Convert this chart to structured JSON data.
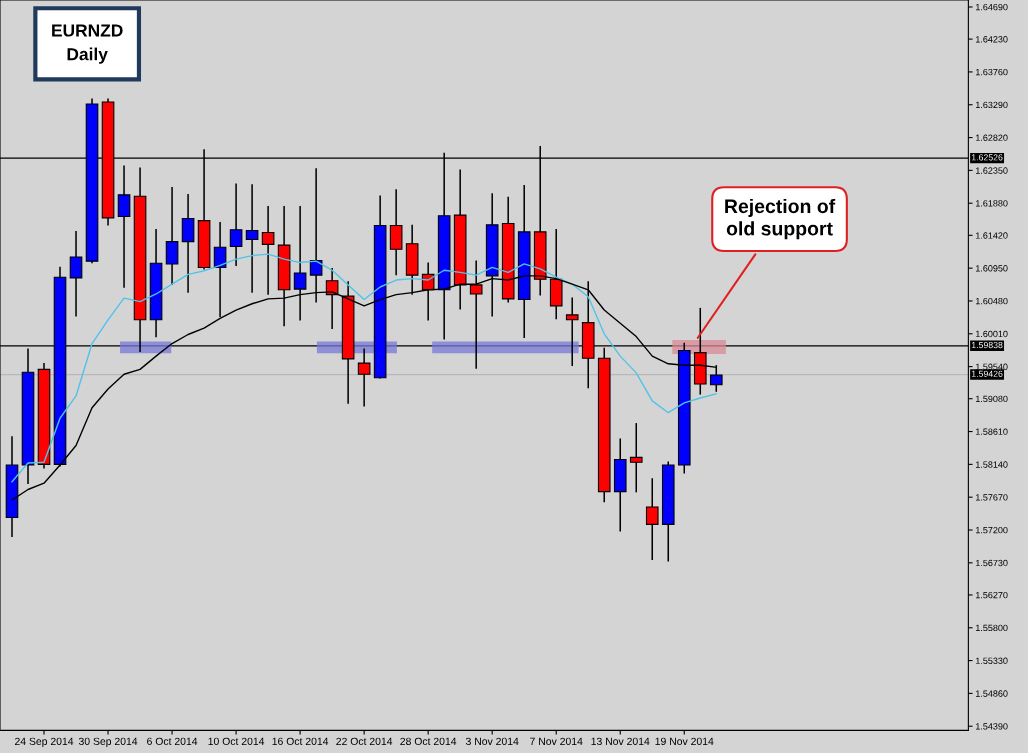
{
  "chart_data": {
    "type": "candlestick",
    "title": "EURNZD\nDaily",
    "categories": [
      null,
      null,
      "24 Sep 2014",
      null,
      null,
      null,
      "30 Sep 2014",
      null,
      null,
      null,
      "6 Oct 2014",
      null,
      null,
      null,
      "10 Oct 2014",
      null,
      null,
      null,
      "16 Oct 2014",
      null,
      null,
      null,
      "22 Oct 2014",
      null,
      null,
      null,
      "28 Oct 2014",
      null,
      null,
      null,
      "3 Nov 2014",
      null,
      null,
      null,
      "7 Nov 2014",
      null,
      null,
      null,
      "13 Nov 2014",
      null,
      null,
      null,
      "19 Nov 2014",
      null,
      null
    ],
    "ohlc": [
      [
        1.5738,
        1.5853,
        1.5711,
        1.5813
      ],
      [
        1.5813,
        1.5979,
        1.5787,
        1.5946
      ],
      [
        1.595,
        1.5958,
        1.5809,
        1.5814
      ],
      [
        1.5814,
        1.6096,
        1.5812,
        1.6082
      ],
      [
        1.6081,
        1.6147,
        1.6027,
        1.6111
      ],
      [
        1.6105,
        1.6337,
        1.6103,
        1.633
      ],
      [
        1.6333,
        1.6337,
        1.6157,
        1.6167
      ],
      [
        1.6169,
        1.6241,
        1.6068,
        1.62
      ],
      [
        1.6198,
        1.6238,
        1.5976,
        1.6021
      ],
      [
        1.6021,
        1.615,
        1.5997,
        1.6102
      ],
      [
        1.6101,
        1.621,
        1.6072,
        1.6133
      ],
      [
        1.6133,
        1.62,
        1.6061,
        1.6166
      ],
      [
        1.6163,
        1.6264,
        1.6094,
        1.6096
      ],
      [
        1.6096,
        1.616,
        1.6026,
        1.6125
      ],
      [
        1.6126,
        1.6215,
        1.6099,
        1.615
      ],
      [
        1.6136,
        1.6214,
        1.6061,
        1.6149
      ],
      [
        1.6146,
        1.6183,
        1.6058,
        1.6129
      ],
      [
        1.6128,
        1.6183,
        1.6013,
        1.6064
      ],
      [
        1.6065,
        1.6183,
        1.6021,
        1.6088
      ],
      [
        1.6085,
        1.6237,
        1.6047,
        1.6106
      ],
      [
        1.6077,
        1.6094,
        1.6009,
        1.6057
      ],
      [
        1.6055,
        1.6075,
        1.5902,
        1.5965
      ],
      [
        1.5959,
        1.5979,
        1.5898,
        1.5943
      ],
      [
        1.5938,
        1.6198,
        1.5938,
        1.6156
      ],
      [
        1.6156,
        1.6207,
        1.6086,
        1.6122
      ],
      [
        1.613,
        1.6156,
        1.6058,
        1.6085
      ],
      [
        1.6086,
        1.6102,
        1.6021,
        1.6064
      ],
      [
        1.6064,
        1.6259,
        1.5994,
        1.617
      ],
      [
        1.6171,
        1.6235,
        1.6037,
        1.6071
      ],
      [
        1.6071,
        1.6105,
        1.5952,
        1.6058
      ],
      [
        1.6084,
        1.6201,
        1.6027,
        1.6157
      ],
      [
        1.6159,
        1.6196,
        1.6047,
        1.6051
      ],
      [
        1.605,
        1.6213,
        1.5996,
        1.6147
      ],
      [
        1.6147,
        1.6269,
        1.6057,
        1.6079
      ],
      [
        1.6079,
        1.615,
        1.6023,
        1.6041
      ],
      [
        1.6028,
        1.6052,
        1.5956,
        1.6021
      ],
      [
        1.6017,
        1.6075,
        1.5924,
        1.5966
      ],
      [
        1.5966,
        1.598,
        1.5761,
        1.5775
      ],
      [
        1.5775,
        1.585,
        1.5719,
        1.5821
      ],
      [
        1.5824,
        1.5872,
        1.5775,
        1.5817
      ],
      [
        1.5753,
        1.5793,
        1.5678,
        1.5728
      ],
      [
        1.5728,
        1.5817,
        1.5676,
        1.5813
      ],
      [
        1.5813,
        1.5987,
        1.5802,
        1.5977
      ],
      [
        1.5974,
        1.6037,
        1.5915,
        1.5929
      ],
      [
        1.5928,
        1.5955,
        1.5919,
        1.5942
      ]
    ],
    "colors": [
      "#0000ff",
      "#0000ff",
      "#ff0000",
      "#0000ff",
      "#0000ff",
      "#0000ff",
      "#ff0000",
      "#0000ff",
      "#ff0000",
      "#0000ff",
      "#0000ff",
      "#0000ff",
      "#ff0000",
      "#0000ff",
      "#0000ff",
      "#0000ff",
      "#ff0000",
      "#ff0000",
      "#0000ff",
      "#0000ff",
      "#ff0000",
      "#ff0000",
      "#ff0000",
      "#0000ff",
      "#ff0000",
      "#ff0000",
      "#ff0000",
      "#0000ff",
      "#ff0000",
      "#ff0000",
      "#0000ff",
      "#ff0000",
      "#0000ff",
      "#ff0000",
      "#ff0000",
      "#ff0000",
      "#ff0000",
      "#ff0000",
      "#0000ff",
      "#ff0000",
      "#ff0000",
      "#0000ff",
      "#0000ff",
      "#ff0000",
      "#0000ff"
    ],
    "series": [
      {
        "type": "line",
        "color": "#4fc3e8",
        "values": [
          1.5789,
          1.5816,
          1.5817,
          1.588,
          1.5912,
          1.5987,
          1.6021,
          1.6052,
          1.6047,
          1.6058,
          1.6072,
          1.6086,
          1.6091,
          1.6099,
          1.6108,
          1.6113,
          1.6115,
          1.6108,
          1.6103,
          1.6105,
          1.6092,
          1.6071,
          1.605,
          1.6068,
          1.6078,
          1.608,
          1.6078,
          1.6092,
          1.6089,
          1.6085,
          1.6096,
          1.6089,
          1.6101,
          1.6094,
          1.6082,
          1.6072,
          1.6054,
          1.6001,
          1.5969,
          1.5945,
          1.5905,
          1.5888,
          1.5902,
          1.5909,
          1.5915
        ]
      },
      {
        "type": "line",
        "color": "#000000",
        "values": [
          1.5763,
          1.5778,
          1.5787,
          1.5813,
          1.5841,
          1.5895,
          1.5922,
          1.5943,
          1.595,
          1.5969,
          1.5987,
          1.6,
          1.6009,
          1.6023,
          1.6035,
          1.6044,
          1.6051,
          1.6052,
          1.6057,
          1.606,
          1.6061,
          1.6051,
          1.6041,
          1.605,
          1.6057,
          1.606,
          1.6064,
          1.6065,
          1.6072,
          1.6072,
          1.608,
          1.6078,
          1.6084,
          1.6084,
          1.608,
          1.6072,
          1.6064,
          1.6035,
          1.6016,
          1.5997,
          1.5969,
          1.5958,
          1.5956,
          1.5956,
          1.5953
        ]
      }
    ],
    "ylim": [
      1.5433,
      1.6479
    ],
    "yticks": [
      {
        "value": 1.6469,
        "label": "1.64690"
      },
      {
        "value": 1.6423,
        "label": "1.64230"
      },
      {
        "value": 1.6376,
        "label": "1.63760"
      },
      {
        "value": 1.6329,
        "label": "1.63290"
      },
      {
        "value": 1.6282,
        "label": "1.62820"
      },
      {
        "value": 1.6235,
        "label": "1.62350"
      },
      {
        "value": 1.6188,
        "label": "1.61880"
      },
      {
        "value": 1.6142,
        "label": "1.61420"
      },
      {
        "value": 1.6095,
        "label": "1.60950"
      },
      {
        "value": 1.6048,
        "label": "1.60480"
      },
      {
        "value": 1.6001,
        "label": "1.60010"
      },
      {
        "value": 1.5954,
        "label": "1.59540"
      },
      {
        "value": 1.5908,
        "label": "1.59080"
      },
      {
        "value": 1.5861,
        "label": "1.58610"
      },
      {
        "value": 1.5814,
        "label": "1.58140"
      },
      {
        "value": 1.5767,
        "label": "1.57670"
      },
      {
        "value": 1.572,
        "label": "1.57200"
      },
      {
        "value": 1.5673,
        "label": "1.56730"
      },
      {
        "value": 1.5627,
        "label": "1.56270"
      },
      {
        "value": 1.558,
        "label": "1.55800"
      },
      {
        "value": 1.5533,
        "label": "1.55330"
      },
      {
        "value": 1.5486,
        "label": "1.54860"
      },
      {
        "value": 1.5439,
        "label": "1.54390"
      }
    ],
    "ref_lines": [
      {
        "axis": "y",
        "value": 1.62526,
        "label": "1.62526",
        "color": "#000000"
      },
      {
        "axis": "y",
        "value": 1.59838,
        "label": "1.59838",
        "color": "#000000"
      },
      {
        "axis": "y",
        "value": 1.59426,
        "label": "1.59426",
        "color": "#b8b8b8"
      }
    ],
    "bands": [
      {
        "axis": "y",
        "from": 1.5973,
        "to": 1.599,
        "color": "#7878d8"
      },
      {
        "axis": "y",
        "from": 1.5973,
        "to": 1.599,
        "color": "#7878d8"
      },
      {
        "axis": "y",
        "from": 1.5973,
        "to": 1.599,
        "color": "#7878d8"
      },
      {
        "axis": "y",
        "from": 1.5972,
        "to": 1.5992,
        "color": "#d88a96"
      }
    ],
    "annotations": [
      "Rejection of\nold support"
    ],
    "grid": false,
    "legend": false
  }
}
